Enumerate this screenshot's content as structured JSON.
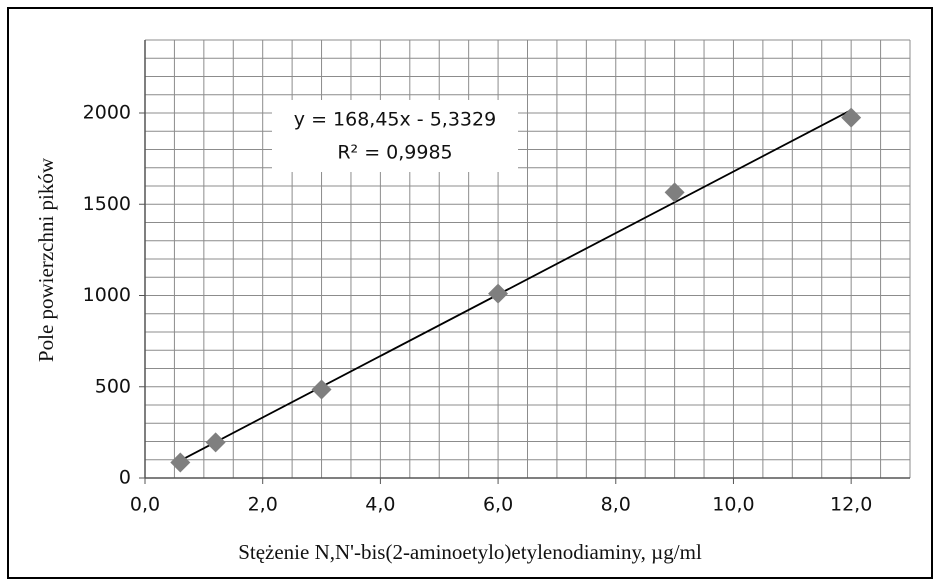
{
  "chart_data": {
    "type": "scatter",
    "x_label": "Stężenie N,N'-bis(2-aminoetylo)etylenodiaminy, µg/ml",
    "y_label": "Pole powierzchni pików",
    "x": [
      0.6,
      1.2,
      3,
      6,
      9,
      12
    ],
    "values": [
      85,
      195,
      485,
      1010,
      1565,
      1975
    ],
    "color": "#7f7f7f",
    "xlim": [
      0,
      13
    ],
    "ylim": [
      0,
      2400
    ],
    "xticks": [
      {
        "value": 0,
        "label": "0,0"
      },
      {
        "value": 2,
        "label": "2,0"
      },
      {
        "value": 4,
        "label": "4,0"
      },
      {
        "value": 6,
        "label": "6,0"
      },
      {
        "value": 8,
        "label": "8,0"
      },
      {
        "value": 10,
        "label": "10,0"
      },
      {
        "value": 12,
        "label": "12,0"
      }
    ],
    "yticks": [
      0,
      500,
      1000,
      1500,
      2000
    ],
    "x_gridlines": [
      0.5,
      1,
      1.5,
      2,
      2.5,
      3,
      3.5,
      4,
      4.5,
      5,
      5.5,
      6,
      6.5,
      7,
      7.5,
      8,
      8.5,
      9,
      9.5,
      10,
      10.5,
      11,
      11.5,
      12,
      12.5,
      13
    ],
    "y_gridlines": [
      100,
      200,
      300,
      400,
      500,
      600,
      700,
      800,
      900,
      1000,
      1100,
      1200,
      1300,
      1400,
      1500,
      1600,
      1700,
      1800,
      1900,
      2000,
      2100,
      2200,
      2300,
      2400
    ],
    "grid": true,
    "trendline": {
      "slope": 168.45,
      "intercept": -5.3329,
      "equation": "y = 168,45x - 5,3329",
      "r2": "R² = 0,9985"
    }
  }
}
